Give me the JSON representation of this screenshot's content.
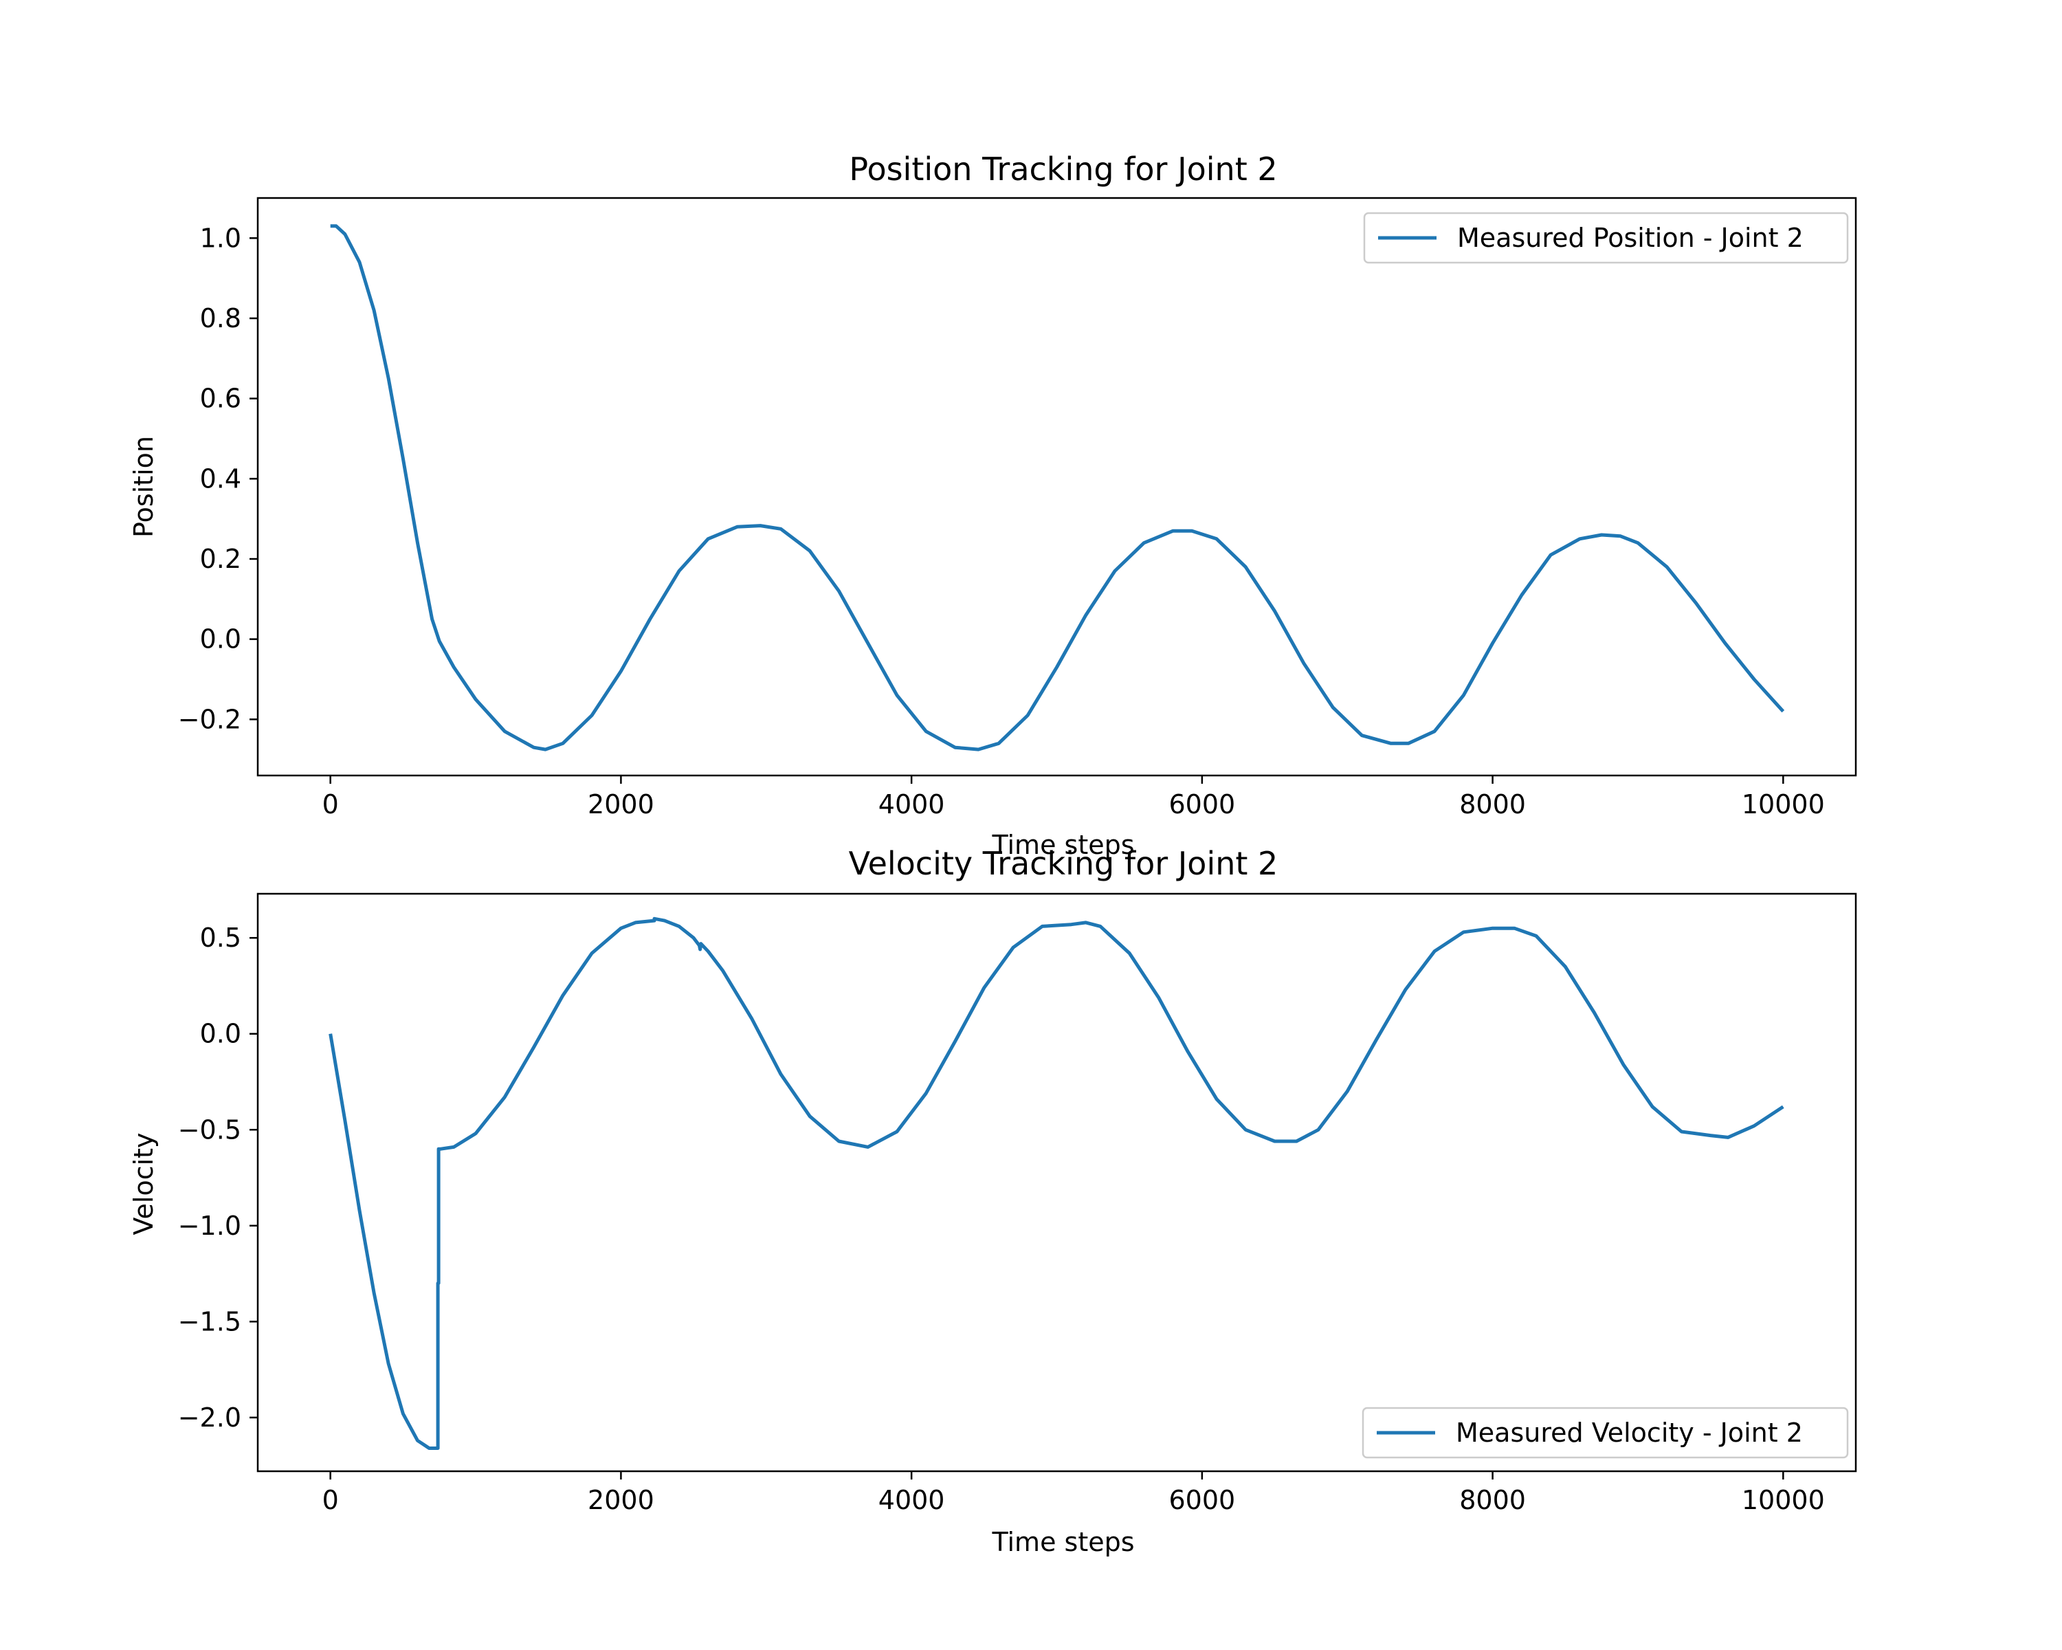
{
  "colors": {
    "series": "#1f77b4",
    "axes": "#000000",
    "legend_border": "#cccccc",
    "background": "#ffffff"
  },
  "chart_data": [
    {
      "type": "line",
      "title": "Position Tracking for Joint 2",
      "xlabel": "Time steps",
      "ylabel": "Position",
      "xlim": [
        -500,
        10500
      ],
      "ylim": [
        -0.34,
        1.1
      ],
      "xticks": [
        0,
        2000,
        4000,
        6000,
        8000,
        10000
      ],
      "xtick_labels": [
        "0",
        "2000",
        "4000",
        "6000",
        "8000",
        "10000"
      ],
      "yticks": [
        -0.2,
        0.0,
        0.2,
        0.4,
        0.6,
        0.8,
        1.0
      ],
      "ytick_labels": [
        "−0.2",
        "0.0",
        "0.2",
        "0.4",
        "0.6",
        "0.8",
        "1.0"
      ],
      "grid": false,
      "legend_position": "upper right",
      "series": [
        {
          "name": "Measured Position - Joint 2",
          "color": "#1f77b4",
          "x": [
            0,
            40,
            100,
            200,
            300,
            400,
            500,
            600,
            700,
            750,
            850,
            1000,
            1200,
            1400,
            1480,
            1600,
            1800,
            2000,
            2200,
            2400,
            2600,
            2800,
            2960,
            3100,
            3300,
            3500,
            3700,
            3900,
            4100,
            4300,
            4460,
            4600,
            4800,
            5000,
            5200,
            5400,
            5600,
            5800,
            5930,
            6100,
            6300,
            6500,
            6700,
            6900,
            7100,
            7300,
            7420,
            7600,
            7800,
            8000,
            8200,
            8400,
            8600,
            8750,
            8880,
            9000,
            9200,
            9400,
            9600,
            9800,
            10000
          ],
          "y": [
            1.03,
            1.03,
            1.01,
            0.94,
            0.82,
            0.65,
            0.45,
            0.24,
            0.05,
            -0.005,
            -0.07,
            -0.15,
            -0.23,
            -0.27,
            -0.275,
            -0.26,
            -0.19,
            -0.08,
            0.05,
            0.17,
            0.25,
            0.28,
            0.283,
            0.275,
            0.22,
            0.12,
            -0.01,
            -0.14,
            -0.23,
            -0.27,
            -0.275,
            -0.26,
            -0.19,
            -0.07,
            0.06,
            0.17,
            0.24,
            0.27,
            0.27,
            0.25,
            0.18,
            0.07,
            -0.06,
            -0.17,
            -0.24,
            -0.26,
            -0.26,
            -0.23,
            -0.14,
            -0.01,
            0.11,
            0.21,
            0.25,
            0.26,
            0.257,
            0.24,
            0.18,
            0.09,
            -0.01,
            -0.1,
            -0.18
          ]
        }
      ]
    },
    {
      "type": "line",
      "title": "Velocity Tracking for Joint 2",
      "xlabel": "Time steps",
      "ylabel": "Velocity",
      "xlim": [
        -500,
        10500
      ],
      "ylim": [
        -2.28,
        0.73
      ],
      "xticks": [
        0,
        2000,
        4000,
        6000,
        8000,
        10000
      ],
      "xtick_labels": [
        "0",
        "2000",
        "4000",
        "6000",
        "8000",
        "10000"
      ],
      "yticks": [
        -2.0,
        -1.5,
        -1.0,
        -0.5,
        0.0,
        0.5
      ],
      "ytick_labels": [
        "−2.0",
        "−1.5",
        "−1.0",
        "−0.5",
        "0.0",
        "0.5"
      ],
      "grid": false,
      "legend_position": "lower right",
      "series": [
        {
          "name": "Measured Velocity - Joint 2",
          "color": "#1f77b4",
          "x": [
            0,
            100,
            200,
            300,
            400,
            500,
            600,
            680,
            730,
            740,
            740,
            745,
            745,
            760,
            850,
            1000,
            1200,
            1400,
            1600,
            1800,
            2000,
            2100,
            2230,
            2230,
            2300,
            2400,
            2500,
            2540,
            2545,
            2550,
            2600,
            2700,
            2900,
            3100,
            3300,
            3500,
            3700,
            3900,
            4100,
            4300,
            4500,
            4700,
            4900,
            5100,
            5200,
            5300,
            5500,
            5700,
            5900,
            6100,
            6300,
            6500,
            6650,
            6800,
            7000,
            7200,
            7400,
            7600,
            7800,
            8000,
            8150,
            8300,
            8500,
            8700,
            8900,
            9100,
            9300,
            9500,
            9620,
            9800,
            10000
          ],
          "y": [
            0.0,
            -0.45,
            -0.92,
            -1.35,
            -1.72,
            -1.98,
            -2.12,
            -2.16,
            -2.16,
            -2.16,
            -1.3,
            -1.3,
            -0.6,
            -0.6,
            -0.59,
            -0.52,
            -0.33,
            -0.07,
            0.2,
            0.42,
            0.55,
            0.58,
            0.59,
            0.6,
            0.59,
            0.56,
            0.5,
            0.46,
            0.44,
            0.47,
            0.43,
            0.33,
            0.08,
            -0.21,
            -0.43,
            -0.56,
            -0.59,
            -0.51,
            -0.31,
            -0.04,
            0.24,
            0.45,
            0.56,
            0.57,
            0.58,
            0.56,
            0.42,
            0.19,
            -0.09,
            -0.34,
            -0.5,
            -0.56,
            -0.56,
            -0.5,
            -0.3,
            -0.03,
            0.23,
            0.43,
            0.53,
            0.55,
            0.55,
            0.51,
            0.35,
            0.11,
            -0.16,
            -0.38,
            -0.51,
            -0.53,
            -0.54,
            -0.48,
            -0.38
          ]
        }
      ]
    }
  ]
}
